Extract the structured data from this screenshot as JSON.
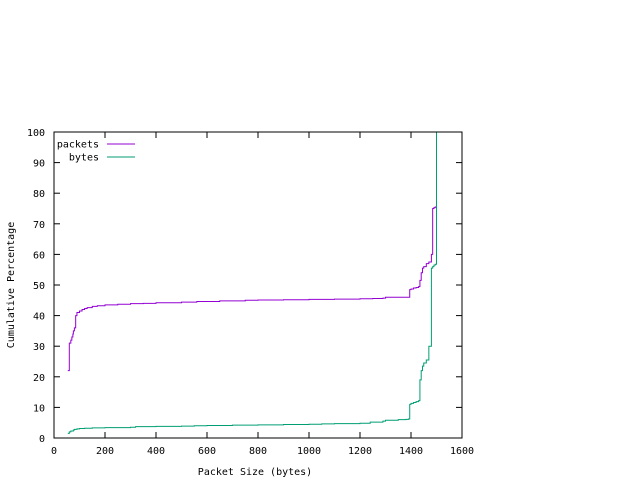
{
  "chart_data": {
    "type": "line",
    "step": true,
    "xlabel": "Packet Size (bytes)",
    "ylabel": "Cumulative Percentage",
    "xlim": [
      0,
      1600
    ],
    "ylim": [
      0,
      100
    ],
    "xticks": [
      0,
      200,
      400,
      600,
      800,
      1000,
      1200,
      1400,
      1600
    ],
    "yticks": [
      0,
      10,
      20,
      30,
      40,
      50,
      60,
      70,
      80,
      90,
      100
    ],
    "grid": false,
    "legend_position": "top-left",
    "series": [
      {
        "name": "packets",
        "color": "#9400d3",
        "x": [
          54,
          60,
          60,
          66,
          70,
          74,
          76,
          80,
          85,
          90,
          100,
          110,
          120,
          130,
          150,
          170,
          200,
          250,
          300,
          350,
          400,
          500,
          560,
          650,
          750,
          800,
          900,
          1000,
          1100,
          1200,
          1250,
          1290,
          1300,
          1350,
          1390,
          1395,
          1400,
          1410,
          1420,
          1430,
          1435,
          1440,
          1445,
          1450,
          1460,
          1470,
          1480,
          1485,
          1490,
          1495,
          1500,
          1500
        ],
        "y": [
          22,
          22,
          31,
          32,
          33,
          34,
          35,
          36,
          40,
          41,
          41.5,
          42,
          42.3,
          42.6,
          43,
          43.2,
          43.5,
          43.7,
          43.9,
          44,
          44.2,
          44.4,
          44.6,
          44.8,
          45,
          45.1,
          45.2,
          45.3,
          45.4,
          45.5,
          45.6,
          45.7,
          46,
          46,
          46,
          48.5,
          48.7,
          49,
          49.2,
          49.5,
          51.5,
          54,
          55.5,
          56,
          57,
          57.5,
          60,
          75,
          75.3,
          75.5,
          75.5,
          100
        ]
      },
      {
        "name": "bytes",
        "color": "#009e73",
        "x": [
          54,
          60,
          66,
          76,
          80,
          90,
          100,
          120,
          150,
          200,
          300,
          320,
          400,
          500,
          550,
          600,
          700,
          800,
          900,
          1000,
          1050,
          1100,
          1200,
          1240,
          1290,
          1300,
          1350,
          1380,
          1390,
          1395,
          1400,
          1410,
          1420,
          1430,
          1435,
          1440,
          1445,
          1450,
          1460,
          1470,
          1480,
          1485,
          1490,
          1495,
          1500,
          1500
        ],
        "y": [
          1.5,
          2,
          2.3,
          2.6,
          2.8,
          3,
          3.1,
          3.2,
          3.3,
          3.4,
          3.5,
          3.7,
          3.8,
          3.9,
          4,
          4.1,
          4.2,
          4.3,
          4.4,
          4.5,
          4.6,
          4.7,
          4.8,
          5.2,
          5.5,
          5.8,
          6,
          6.1,
          6.2,
          11,
          11.3,
          11.6,
          11.9,
          12.2,
          19,
          22,
          23.5,
          24.5,
          25.5,
          30,
          55.5,
          56,
          56.5,
          56.8,
          57,
          100
        ]
      }
    ]
  }
}
